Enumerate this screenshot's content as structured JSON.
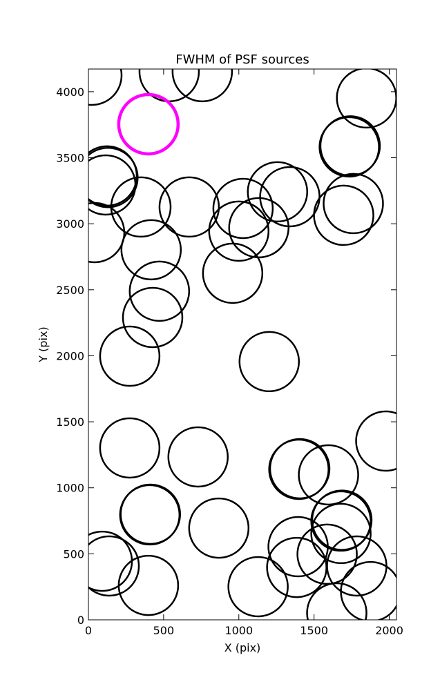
{
  "chart_data": {
    "type": "scatter",
    "title": "FWHM of PSF sources",
    "x_label": "X (pix)",
    "y_label": "Y (pix)",
    "xlim": [
      0,
      2048
    ],
    "ylim": [
      0,
      4172
    ],
    "xticks": [
      0,
      500,
      1000,
      1500,
      2000
    ],
    "yticks": [
      0,
      500,
      1000,
      1500,
      2000,
      2500,
      3000,
      3500,
      4000
    ],
    "grid": false,
    "series": [
      {
        "color": "#000000",
        "x": [
          23,
          537,
          757,
          1849,
          1734,
          1740,
          124,
          130,
          115,
          349,
          670,
          41,
          1028,
          1000,
          1133,
          1257,
          1339,
          1761,
          1697,
          417,
          472,
          427,
          959,
          275,
          1202,
          1977,
          275,
          729,
          1399,
          1405,
          1596,
          408,
          412,
          867,
          1679,
          1685,
          1679,
          92,
          138,
          399,
          1128,
          1394,
          1385,
          1587,
          1784,
          1876,
          1651
        ],
        "values": [
          4125,
          4152,
          4152,
          3953,
          3582,
          3590,
          3362,
          3350,
          3294,
          3127,
          3127,
          2933,
          3116,
          2944,
          2970,
          3242,
          3205,
          3153,
          3064,
          2803,
          2489,
          2290,
          2625,
          1997,
          1956,
          1354,
          1302,
          1234,
          1140,
          1145,
          1098,
          795,
          800,
          695,
          748,
          755,
          654,
          444,
          408,
          261,
          251,
          554,
          397,
          497,
          408,
          214,
          52
        ]
      },
      {
        "color": "#ff00ff",
        "x": [
          399
        ],
        "values": [
          3754
        ]
      }
    ]
  }
}
